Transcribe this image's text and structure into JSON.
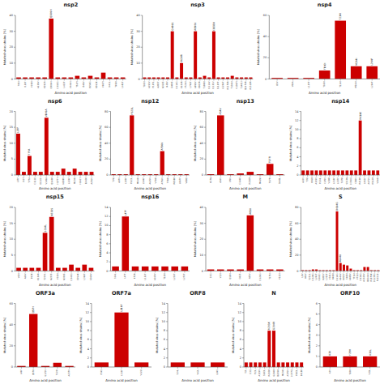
{
  "chart_data": [
    {
      "type": "bar",
      "title": "nsp2",
      "ylabel": "Mutated virus strains [%]",
      "xlabel": "Amino acid position",
      "color": "#cc0000",
      "ylim": [
        0,
        40
      ],
      "yticks": [
        0,
        10,
        20,
        30,
        40
      ],
      "categories": [
        "T85I",
        "I120F",
        "V198I",
        "A239V",
        "K291R",
        "Q306H",
        "D393G",
        "L413F",
        "Y446H",
        "T527I",
        "I548V",
        "E559G",
        "R593K",
        "V607I",
        "I641L",
        "T658I",
        "L681F"
      ],
      "values": [
        1,
        1,
        1,
        1,
        1,
        38,
        1,
        1,
        1,
        2,
        1,
        2,
        1,
        4,
        1,
        1,
        1
      ],
      "annotations": [
        {
          "text": "Q306H",
          "x": "Q306H"
        }
      ]
    },
    {
      "type": "bar",
      "title": "nsp3",
      "ylabel": "Mutated virus strains [%]",
      "xlabel": "Amino acid position",
      "color": "#cc0000",
      "ylim": [
        0,
        40
      ],
      "yticks": [
        0,
        10,
        20,
        30,
        40
      ],
      "categories": [
        "T183I",
        "A193V",
        "P197L",
        "A285T",
        "N310S",
        "I428V",
        "G489S",
        "D614G",
        "K634R",
        "Y724H",
        "L749F",
        "A890V",
        "K903R",
        "T1088I",
        "I1114V",
        "I1131V",
        "S1197F",
        "L1266F",
        "K1279R",
        "T1366I",
        "V1387I",
        "T1401I",
        "Q1474R",
        "K1518R"
      ],
      "values": [
        1,
        1,
        1,
        1,
        1,
        1,
        30,
        1,
        10,
        1,
        1,
        30,
        1,
        2,
        1,
        30,
        1,
        1,
        1,
        2,
        1,
        1,
        1,
        1
      ],
      "annotations": [
        {
          "text": "G489S",
          "x": "G489S"
        },
        {
          "text": "K634R",
          "x": "K634R"
        },
        {
          "text": "A890V",
          "x": "A890V"
        },
        {
          "text": "I1131V",
          "x": "I1131V"
        }
      ]
    },
    {
      "type": "bar",
      "title": "nsp4",
      "ylabel": "Mutated virus strains [%]",
      "xlabel": "Amino acid position",
      "color": "#cc0000",
      "ylim": [
        0,
        60
      ],
      "yticks": [
        0,
        20,
        40,
        60
      ],
      "categories": [
        "I23V",
        "V86A",
        "L107F",
        "T160I",
        "T214I",
        "M264I",
        "L264F"
      ],
      "values": [
        1,
        1,
        1,
        8,
        55,
        12,
        12
      ],
      "annotations": [
        {
          "text": "T160I",
          "x": "T160I"
        },
        {
          "text": "T214I",
          "x": "T214I"
        },
        {
          "text": "M264I",
          "x": "M264I"
        },
        {
          "text": "L264F",
          "x": "L264F"
        }
      ]
    },
    {
      "type": "bar",
      "title": "nsp6",
      "ylabel": "Mutated virus strains [%]",
      "xlabel": "Amino acid position",
      "color": "#cc0000",
      "ylim": [
        0,
        20
      ],
      "yticks": [
        0,
        5,
        10,
        15,
        20
      ],
      "categories": [
        "L37F",
        "I53T",
        "T77A",
        "D111E",
        "E132D",
        "V149A",
        "Q160K",
        "H177Y",
        "N208S",
        "L226F",
        "M234I",
        "H241Y",
        "E243K",
        "A256V"
      ],
      "values": [
        13,
        1,
        6,
        1,
        1,
        18,
        1,
        1,
        2,
        1,
        2,
        1,
        1,
        1
      ],
      "annotations": [
        {
          "text": "L37F",
          "x": "L37F"
        },
        {
          "text": "T77A",
          "x": "T77A"
        },
        {
          "text": "V149A",
          "x": "V149A"
        }
      ]
    },
    {
      "type": "bar",
      "title": "nsp12",
      "ylabel": "Mutated virus strains [%]",
      "xlabel": "Amino acid position",
      "color": "#cc0000",
      "ylim": [
        0,
        80
      ],
      "yticks": [
        0,
        20,
        40,
        60,
        80
      ],
      "categories": [
        "T74I",
        "A97V",
        "L100F",
        "P323L",
        "M543I",
        "L544F",
        "A625V",
        "V704I",
        "A756V",
        "T784I",
        "R858K",
        "L867F",
        "V880I"
      ],
      "values": [
        1,
        1,
        1,
        75,
        1,
        1,
        1,
        1,
        30,
        1,
        1,
        1,
        1
      ],
      "annotations": [
        {
          "text": "P323L",
          "x": "P323L"
        },
        {
          "text": "A756V",
          "x": "A756V"
        }
      ]
    },
    {
      "type": "bar",
      "title": "nsp13",
      "ylabel": "Mutated virus strains [%]",
      "xlabel": "Amino acid position",
      "color": "#cc0000",
      "ylim": [
        0,
        80
      ],
      "yticks": [
        0,
        20,
        40,
        60,
        80
      ],
      "categories": [
        "K17N",
        "A54V",
        "I78V",
        "D144E",
        "K226R",
        "M429I",
        "T577I",
        "S648L"
      ],
      "values": [
        1,
        75,
        1,
        2,
        4,
        1,
        14,
        1
      ],
      "annotations": [
        {
          "text": "A54V",
          "x": "A54V"
        },
        {
          "text": "T577I",
          "x": "T577I"
        }
      ]
    },
    {
      "type": "bar",
      "title": "nsp14",
      "ylabel": "Mutated virus strains [%]",
      "xlabel": "Amino acid position",
      "color": "#cc0000",
      "ylim": [
        0,
        14
      ],
      "yticks": [
        0,
        2,
        4,
        6,
        8,
        10,
        12,
        14
      ],
      "categories": [
        "A22V",
        "T35I",
        "K65R",
        "A119V",
        "P134L",
        "I178V",
        "V198I",
        "L219F",
        "L237F",
        "T278I",
        "S313N",
        "D350G",
        "I388V",
        "R419K",
        "L461F",
        "A471V",
        "K512R",
        "V564I"
      ],
      "values": [
        1,
        1,
        1,
        1,
        1,
        1,
        1,
        1,
        1,
        1,
        1,
        1,
        1,
        12,
        1,
        1,
        1,
        1
      ],
      "annotations": [
        {
          "text": "R419K",
          "x": "R419K"
        }
      ]
    },
    {
      "type": "bar",
      "title": "nsp15",
      "ylabel": "Mutated virus strains [%]",
      "xlabel": "Amino acid position",
      "color": "#cc0000",
      "ylim": [
        0,
        20
      ],
      "yticks": [
        0,
        5,
        10,
        15,
        20
      ],
      "categories": [
        "V60I",
        "A66V",
        "E93K",
        "K136R",
        "S214L",
        "N233S",
        "V320I",
        "N339S",
        "D343G",
        "E354K",
        "L360F",
        "G369V"
      ],
      "values": [
        1,
        1,
        1,
        1,
        12,
        17,
        1,
        1,
        2,
        1,
        2,
        1
      ],
      "annotations": [
        {
          "text": "S214L",
          "x": "S214L"
        },
        {
          "text": "N233S",
          "x": "N233S"
        }
      ]
    },
    {
      "type": "bar",
      "title": "nsp16",
      "ylabel": "Mutated virus strains [%]",
      "xlabel": "Amino acid position",
      "color": "#cc0000",
      "ylim": [
        0,
        14
      ],
      "yticks": [
        0,
        2,
        4,
        6,
        8,
        10,
        12,
        14
      ],
      "categories": [
        "S14L",
        "L47F",
        "K73R",
        "L122F",
        "A160V",
        "T229I",
        "L232F",
        "L272F"
      ],
      "values": [
        1,
        12,
        1,
        1,
        1,
        1,
        1,
        1
      ],
      "annotations": [
        {
          "text": "L47F",
          "x": "L47F"
        }
      ]
    },
    {
      "type": "bar",
      "title": "M",
      "ylabel": "Mutated virus strains [%]",
      "xlabel": "Amino acid position",
      "color": "#cc0000",
      "ylim": [
        0,
        40
      ],
      "yticks": [
        0,
        10,
        20,
        30,
        40
      ],
      "categories": [
        "D3G",
        "V13I",
        "Q19H",
        "G82S",
        "A85V",
        "D126G",
        "T175I",
        "V222I"
      ],
      "values": [
        1,
        1,
        1,
        1,
        35,
        1,
        1,
        1
      ],
      "annotations": [
        {
          "text": "A85V",
          "x": "A85V"
        }
      ]
    },
    {
      "type": "bar",
      "title": "S",
      "ylabel": "Mutated virus strains [%]",
      "xlabel": "Amino acid position",
      "color": "#cc0000",
      "ylim": [
        0,
        80
      ],
      "yticks": [
        0,
        20,
        40,
        60,
        80
      ],
      "categories": [
        "L8V",
        "H49Y",
        "S221L",
        "D228G",
        "L242F",
        "G261D",
        "H285Y",
        "L323F",
        "V341I",
        "R408I",
        "D614G",
        "A644V",
        "H655Y",
        "S680I",
        "A688V",
        "T716I",
        "V722I",
        "D936G",
        "A1020V",
        "Q1044H",
        "R1079K",
        "D1135G",
        "P1151S"
      ],
      "values": [
        1,
        1,
        1,
        2,
        2,
        1,
        1,
        1,
        1,
        1,
        75,
        10,
        8,
        7,
        3,
        1,
        1,
        1,
        5,
        5,
        1,
        1,
        1
      ],
      "annotations": [
        {
          "text": "D614G",
          "x": "D614G"
        },
        {
          "text": "A644V",
          "x": "A644V"
        }
      ]
    },
    {
      "type": "bar",
      "title": "ORF3a",
      "ylabel": "Mutated virus strains [%]",
      "xlabel": "Amino acid position",
      "color": "#cc0000",
      "ylim": [
        0,
        60
      ],
      "yticks": [
        0,
        20,
        40,
        60
      ],
      "categories": [
        "L46F",
        "Q57H",
        "G172V",
        "T223I",
        "A237V"
      ],
      "values": [
        1,
        50,
        1,
        4,
        1
      ],
      "annotations": [
        {
          "text": "Q57H",
          "x": "Q57H"
        }
      ]
    },
    {
      "type": "bar",
      "title": "ORF7a",
      "ylabel": "Mutated virus strains [%]",
      "xlabel": "Amino acid position",
      "color": "#cc0000",
      "ylim": [
        0,
        14
      ],
      "yticks": [
        0,
        2,
        4,
        6,
        8,
        10,
        12,
        14
      ],
      "categories": [
        "P34S",
        "L116F",
        "V121I"
      ],
      "values": [
        1,
        12,
        1
      ],
      "annotations": [
        {
          "text": "L116F",
          "x": "L116F"
        }
      ]
    },
    {
      "type": "bar",
      "title": "ORF8",
      "ylabel": "Mutated virus strains [%]",
      "xlabel": "Amino acid position",
      "color": "#cc0000",
      "ylim": [
        0,
        14
      ],
      "yticks": [
        0,
        2,
        4,
        6,
        8,
        10,
        12,
        14
      ],
      "categories": [
        "S24L",
        "V62L",
        "L84S"
      ],
      "values": [
        1,
        1,
        1
      ]
    },
    {
      "type": "bar",
      "title": "N",
      "ylabel": "Mutated virus strains [%]",
      "xlabel": "Amino acid position",
      "color": "#cc0000",
      "ylim": [
        0,
        14
      ],
      "yticks": [
        0,
        2,
        4,
        6,
        8,
        10,
        12,
        14
      ],
      "categories": [
        "S2L",
        "D3G",
        "P13L",
        "A119V",
        "S183L",
        "R203K",
        "G204R",
        "Q229H",
        "M234I",
        "A376V",
        "D377G",
        "P383L",
        "E418K"
      ],
      "values": [
        1,
        1,
        1,
        1,
        1,
        8,
        8,
        1,
        1,
        1,
        1,
        1,
        1
      ],
      "annotations": [
        {
          "text": "R203K",
          "x": "R203K"
        },
        {
          "text": "G204R",
          "x": "G204R"
        }
      ]
    },
    {
      "type": "bar",
      "title": "ORF10",
      "ylabel": "Mutated virus strains [%]",
      "xlabel": "Amino acid position",
      "color": "#cc0000",
      "ylim": [
        0,
        6
      ],
      "yticks": [
        0,
        1,
        2,
        3,
        4,
        5,
        6
      ],
      "categories": [
        "A3V",
        "Y28H",
        "V30L"
      ],
      "values": [
        1,
        1,
        1
      ],
      "annotations": [
        {
          "text": "A3V",
          "x": "A3V"
        },
        {
          "text": "Y28H",
          "x": "Y28H"
        },
        {
          "text": "V30L",
          "x": "V30L"
        }
      ]
    }
  ]
}
